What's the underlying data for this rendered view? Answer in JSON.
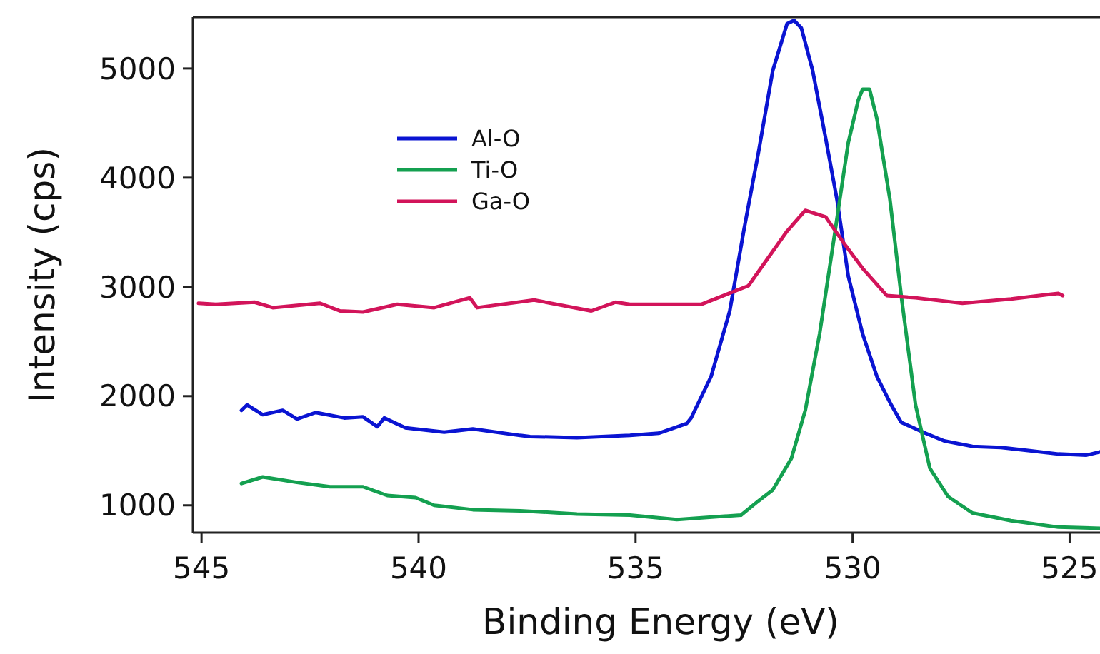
{
  "chart_data": {
    "type": "line",
    "xlabel": "Binding Energy (eV)",
    "ylabel": "Intensity (cps)",
    "xlim": [
      545.2,
      524.3
    ],
    "ylim": [
      750,
      5470
    ],
    "xticks": [
      545,
      540,
      535,
      530,
      525
    ],
    "yticks": [
      1000,
      2000,
      3000,
      4000,
      5000
    ],
    "grid": false,
    "legend": "top left",
    "marker": "none",
    "line_style": "solid",
    "series": [
      {
        "name": "Al-O",
        "color": "#0a14d2",
        "x": [
          544.08,
          543.95,
          543.59,
          543.13,
          542.8,
          542.37,
          541.71,
          541.28,
          540.95,
          540.79,
          540.3,
          539.41,
          538.75,
          537.66,
          537.43,
          536.35,
          535.13,
          534.47,
          533.82,
          533.72,
          533.26,
          532.83,
          532.5,
          532.17,
          531.84,
          531.51,
          531.35,
          531.18,
          530.92,
          530.62,
          530.36,
          530.1,
          529.77,
          529.44,
          529.11,
          528.88,
          528.32,
          527.89,
          527.24,
          526.58,
          525.92,
          525.26,
          524.61,
          524.3
        ],
        "values": [
          1870,
          1920,
          1830,
          1870,
          1790,
          1850,
          1800,
          1810,
          1720,
          1800,
          1710,
          1670,
          1700,
          1640,
          1630,
          1620,
          1640,
          1660,
          1750,
          1800,
          2180,
          2780,
          3530,
          4230,
          4980,
          5410,
          5440,
          5370,
          4980,
          4360,
          3800,
          3100,
          2570,
          2180,
          1920,
          1760,
          1660,
          1590,
          1540,
          1530,
          1500,
          1470,
          1460,
          1490
        ]
      },
      {
        "name": "Ti-O",
        "color": "#14a050",
        "x": [
          544.08,
          543.59,
          542.8,
          542.04,
          541.28,
          540.72,
          540.07,
          539.64,
          538.75,
          537.66,
          536.35,
          535.13,
          534.05,
          532.57,
          532.17,
          531.84,
          531.41,
          531.09,
          530.76,
          530.43,
          530.1,
          529.87,
          529.77,
          529.61,
          529.44,
          529.14,
          528.88,
          528.55,
          528.22,
          527.8,
          527.24,
          526.35,
          525.26,
          524.3
        ],
        "values": [
          1200,
          1260,
          1210,
          1170,
          1170,
          1090,
          1070,
          1000,
          960,
          950,
          920,
          910,
          870,
          910,
          1040,
          1140,
          1430,
          1870,
          2570,
          3440,
          4320,
          4710,
          4810,
          4810,
          4540,
          3800,
          2920,
          1920,
          1340,
          1080,
          930,
          860,
          800,
          790
        ]
      },
      {
        "name": "Ga-O",
        "color": "#d2145a",
        "x": [
          545.07,
          544.67,
          543.78,
          543.36,
          542.27,
          541.81,
          541.28,
          540.49,
          539.64,
          538.82,
          538.65,
          537.34,
          536.02,
          535.46,
          535.13,
          533.49,
          532.4,
          531.51,
          531.09,
          530.62,
          530.2,
          529.77,
          529.21,
          528.55,
          527.47,
          526.35,
          525.49,
          525.26,
          525.16
        ],
        "values": [
          2850,
          2840,
          2860,
          2810,
          2850,
          2780,
          2770,
          2840,
          2810,
          2900,
          2810,
          2880,
          2780,
          2860,
          2840,
          2840,
          3010,
          3510,
          3700,
          3640,
          3400,
          3170,
          2920,
          2900,
          2850,
          2890,
          2930,
          2940,
          2920
        ]
      }
    ]
  }
}
